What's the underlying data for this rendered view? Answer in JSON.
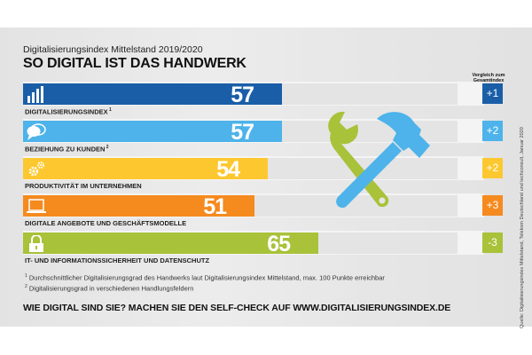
{
  "header": {
    "subtitle": "Digitalisierungsindex Mittelstand 2019/2020",
    "title": "SO DIGITAL IST DAS HANDWERK"
  },
  "comparison_header": {
    "line1": "Vergleich zum",
    "line2": "Gesamtindex"
  },
  "chart_data": {
    "type": "bar",
    "orientation": "horizontal",
    "title": "SO DIGITAL IST DAS HANDWERK",
    "subtitle": "Digitalisierungsindex Mittelstand 2019/2020",
    "xlim": [
      0,
      100
    ],
    "categories": [
      "DIGITALISIERUNGSINDEX",
      "BEZIEHUNG ZU KUNDEN",
      "PRODUKTIVITÄT IM UNTERNEHMEN",
      "DIGITALE ANGEBOTE UND GESCHÄFTSMODELLE",
      "IT- UND INFORMATIONSSICHERHEIT UND DATENSCHUTZ"
    ],
    "category_footnotes": [
      "1",
      "2",
      "",
      "",
      ""
    ],
    "values": [
      57,
      57,
      54,
      51,
      65
    ],
    "comparison_label": "Vergleich zum Gesamtindex",
    "comparison": [
      "+1",
      "+2",
      "+2",
      "+3",
      "-3"
    ],
    "colors": [
      "#1a5ea8",
      "#4db3ea",
      "#fdc82f",
      "#f58a1f",
      "#a8c23a"
    ],
    "icons": [
      "bar-chart-icon",
      "speech-bubbles-icon",
      "gears-icon",
      "laptop-icon",
      "padlock-icon"
    ]
  },
  "footnotes": [
    {
      "mark": "1",
      "text": "Durchschnittlicher Digitalisierungsgrad des Handwerks laut Digitalisierungsindex Mittelstand, max. 100 Punkte erreichbar"
    },
    {
      "mark": "2",
      "text": "Digitalisierungsgrad in verschiedenen Handlungsfeldern"
    }
  ],
  "cta": "WIE DIGITAL SIND SIE? MACHEN SIE DEN SELF-CHECK AUF WWW.DIGITALISIERUNGSINDEX.DE",
  "source": "Quelle: Digitalisierungsindex Mittelstand, Telekom Deutschland und techconsult, Januar 2020",
  "illustration": {
    "hammer_color": "#4db3ea",
    "wrench_color": "#a8c23a"
  }
}
